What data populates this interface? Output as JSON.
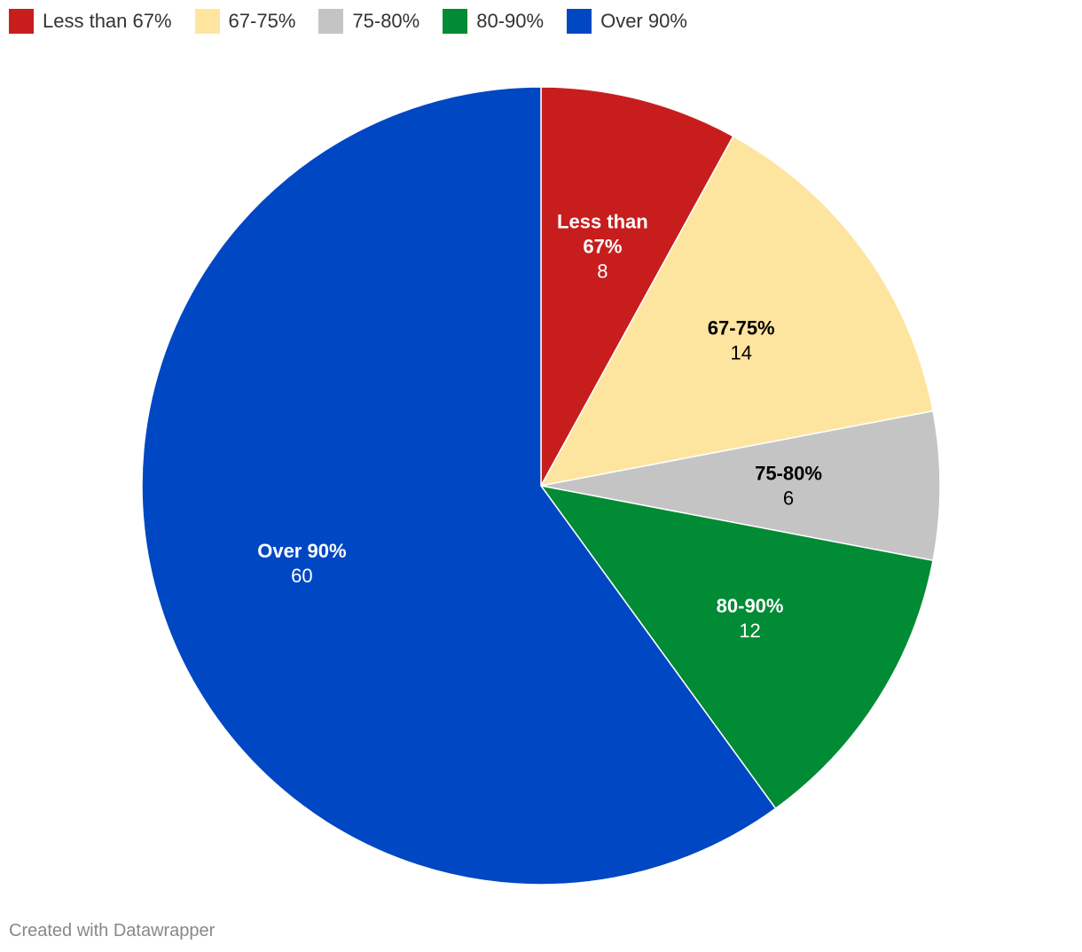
{
  "chart_data": {
    "type": "pie",
    "categories": [
      "Less than 67%",
      "67-75%",
      "75-80%",
      "80-90%",
      "Over 90%"
    ],
    "values": [
      8,
      14,
      6,
      12,
      60
    ],
    "colors": [
      "#c71e1d",
      "#fee59f",
      "#c4c4c4",
      "#008b34",
      "#0047c3"
    ],
    "label_colors": [
      "#ffffff",
      "#000000",
      "#000000",
      "#ffffff",
      "#ffffff"
    ],
    "label_lines": [
      [
        "Less than",
        "67%"
      ],
      [
        "67-75%"
      ],
      [
        "75-80%"
      ],
      [
        "80-90%"
      ],
      [
        "Over 90%"
      ]
    ],
    "legend_position": "top-left",
    "start": "top, clockwise"
  },
  "footer": {
    "credit": "Created with Datawrapper"
  }
}
